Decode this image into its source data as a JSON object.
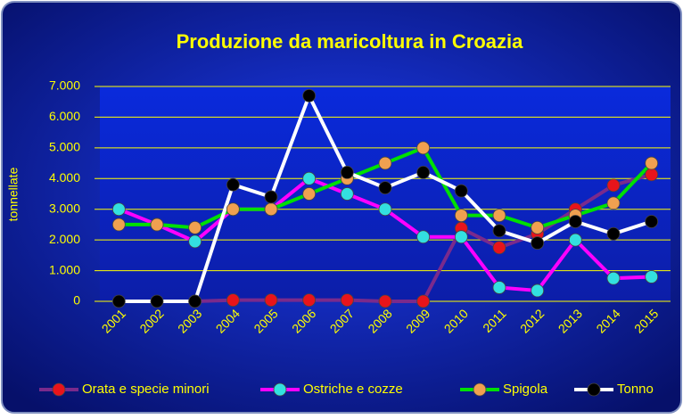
{
  "chart_data": {
    "type": "line",
    "title": "Produzione da maricoltura in Croazia",
    "y_label": "tonnellate",
    "categories": [
      "2001",
      "2002",
      "2003",
      "2004",
      "2005",
      "2006",
      "2007",
      "2008",
      "2009",
      "2010",
      "2011",
      "2012",
      "2013",
      "2014",
      "2015"
    ],
    "series": [
      {
        "name": "Orata e specie minori",
        "color": "#7a2a8c",
        "marker_color": "#e8141b",
        "values": [
          null,
          null,
          0,
          40,
          40,
          40,
          40,
          0,
          0,
          2380,
          1750,
          2200,
          3000,
          3780,
          4130
        ]
      },
      {
        "name": "Ostriche e cozze",
        "color": "#ff00ff",
        "marker_color": "#33e0e0",
        "values": [
          3000,
          2500,
          1950,
          3000,
          3000,
          4000,
          3500,
          3000,
          2100,
          2100,
          450,
          350,
          2000,
          750,
          800
        ]
      },
      {
        "name": "Spigola",
        "color": "#00e000",
        "marker_color": "#f0a050",
        "values": [
          2500,
          2500,
          2400,
          3000,
          3000,
          3500,
          4000,
          4500,
          5000,
          2800,
          2800,
          2400,
          2800,
          3200,
          4500
        ]
      },
      {
        "name": "Tonno",
        "color": "#ffffff",
        "marker_color": "#000000",
        "values": [
          0,
          0,
          0,
          3800,
          3400,
          6700,
          4200,
          3700,
          4200,
          3600,
          2300,
          1900,
          2600,
          2200,
          2600
        ]
      }
    ],
    "ylim": [
      0,
      7000
    ],
    "yticks": [
      0,
      {
        "value": 1000,
        "label": "1.000"
      },
      {
        "value": 2000,
        "label": "2.000"
      },
      {
        "value": 3000,
        "label": "3.000"
      },
      {
        "value": 4000,
        "label": "4.000"
      },
      {
        "value": 5000,
        "label": "5.000"
      },
      {
        "value": 6000,
        "label": "6.000"
      },
      {
        "value": 7000,
        "label": "7.000"
      }
    ],
    "grid": true,
    "legend": "bottom"
  }
}
